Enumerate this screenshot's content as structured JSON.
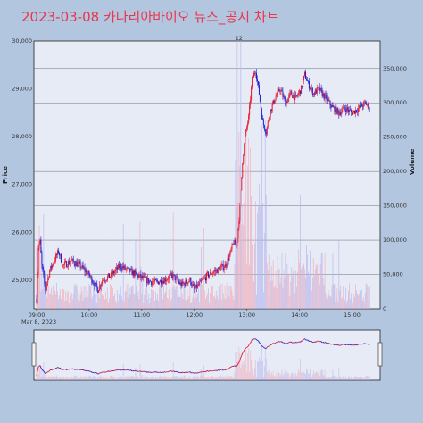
{
  "chart_data": {
    "type": "candlestick",
    "title": "2023-03-08 카나리아바이오 뉴스_공시 차트",
    "xlabel_date": "Mar 8, 2023",
    "ylabel": "Price",
    "y2label": "Volume",
    "price_ylim": [
      24400,
      30000
    ],
    "volume_ylim": [
      0,
      390000
    ],
    "price_ticks": [
      "30,000",
      "29,000",
      "28,000",
      "27,000",
      "26,000",
      "25,000"
    ],
    "volume_ticks": [
      "350,000",
      "300,000",
      "250,000",
      "200,000",
      "150,000",
      "100,000",
      "50,000",
      "0"
    ],
    "time_ticks": [
      "09:00",
      "10:00",
      "11:00",
      "12:00",
      "13:00",
      "14:00",
      "15:00"
    ],
    "news_markers": [
      "1",
      "2"
    ],
    "up_color": "#e8192c",
    "down_color": "#1f1fd0",
    "price_path": [
      [
        "09:00",
        24600
      ],
      [
        "09:02",
        25700
      ],
      [
        "09:04",
        25800
      ],
      [
        "09:06",
        25300
      ],
      [
        "09:10",
        24800
      ],
      [
        "09:15",
        25200
      ],
      [
        "09:20",
        25400
      ],
      [
        "09:25",
        25600
      ],
      [
        "09:30",
        25300
      ],
      [
        "09:40",
        25400
      ],
      [
        "09:50",
        25300
      ],
      [
        "10:00",
        25100
      ],
      [
        "10:10",
        24800
      ],
      [
        "10:15",
        25000
      ],
      [
        "10:25",
        25100
      ],
      [
        "10:35",
        25300
      ],
      [
        "10:45",
        25200
      ],
      [
        "10:55",
        25100
      ],
      [
        "11:05",
        25000
      ],
      [
        "11:15",
        24950
      ],
      [
        "11:25",
        25000
      ],
      [
        "11:35",
        25100
      ],
      [
        "11:45",
        24900
      ],
      [
        "11:55",
        25000
      ],
      [
        "12:00",
        24800
      ],
      [
        "12:05",
        24900
      ],
      [
        "12:15",
        25100
      ],
      [
        "12:25",
        25200
      ],
      [
        "12:35",
        25300
      ],
      [
        "12:40",
        25500
      ],
      [
        "12:45",
        25800
      ],
      [
        "12:48",
        25700
      ],
      [
        "12:52",
        26500
      ],
      [
        "12:55",
        27500
      ],
      [
        "12:58",
        28000
      ],
      [
        "13:02",
        28400
      ],
      [
        "13:06",
        29200
      ],
      [
        "13:10",
        29400
      ],
      [
        "13:14",
        28900
      ],
      [
        "13:18",
        28300
      ],
      [
        "13:22",
        28100
      ],
      [
        "13:26",
        28500
      ],
      [
        "13:32",
        28800
      ],
      [
        "13:38",
        29000
      ],
      [
        "13:44",
        28700
      ],
      [
        "13:50",
        28900
      ],
      [
        "13:56",
        28800
      ],
      [
        "14:02",
        29000
      ],
      [
        "14:06",
        29300
      ],
      [
        "14:10",
        29100
      ],
      [
        "14:16",
        28900
      ],
      [
        "14:22",
        29000
      ],
      [
        "14:30",
        28800
      ],
      [
        "14:38",
        28600
      ],
      [
        "14:45",
        28500
      ],
      [
        "14:52",
        28600
      ],
      [
        "15:00",
        28500
      ],
      [
        "15:08",
        28600
      ],
      [
        "15:15",
        28700
      ],
      [
        "15:20",
        28600
      ]
    ]
  }
}
